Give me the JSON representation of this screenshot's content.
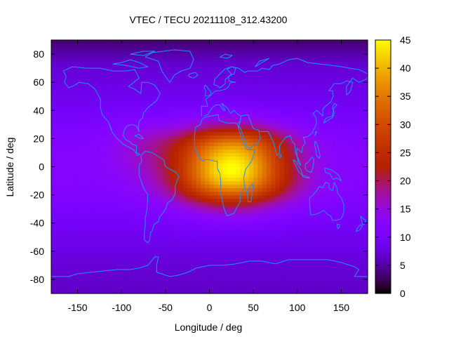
{
  "chart_data": {
    "type": "heatmap",
    "title": "VTEC / TECU 20211108_312.43200",
    "xlabel": "Longitude / deg",
    "ylabel": "Latitude / deg",
    "xlim": [
      -180,
      180
    ],
    "ylim": [
      -90,
      90
    ],
    "x_ticks": [
      -150,
      -100,
      -50,
      0,
      50,
      100,
      150
    ],
    "y_ticks": [
      -80,
      -60,
      -40,
      -20,
      0,
      20,
      40,
      60,
      80
    ],
    "colorbar": {
      "range": [
        0,
        45
      ],
      "ticks": [
        0,
        5,
        10,
        15,
        20,
        25,
        30,
        35,
        40,
        45
      ],
      "colormap": "gnuplot-rgbformulae-7-5-15",
      "position": "right"
    },
    "field": {
      "background_vtec": 12,
      "peak": {
        "lon": 25,
        "lat": 0,
        "vtec": 44
      },
      "anomaly_crest_vtec": 32,
      "high_latitude_vtec": 6,
      "secondary_peak": {
        "lon": -75,
        "lat": 15,
        "vtec": 16
      }
    },
    "coastline_color": "#1e90ff",
    "grid": false
  }
}
